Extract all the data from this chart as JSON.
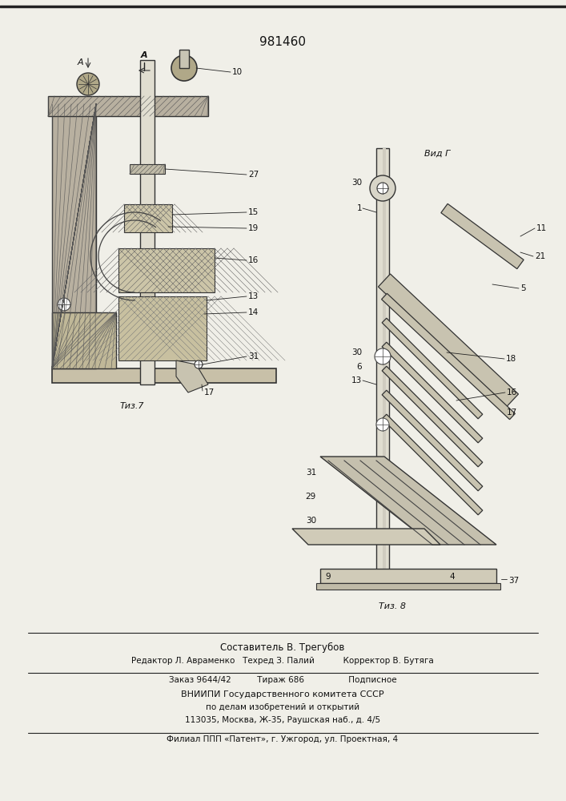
{
  "patent_number": "981460",
  "background_color": "#e8e8e0",
  "paper_color": "#f0efe8",
  "title_text": "981460",
  "fig7_label": "Τиз.7",
  "fig8_label": "Τиз. 8",
  "view_label": "Вид Г",
  "arrow_label": "А",
  "footer_lines": [
    "Составитель В. Трегубов",
    "Редактор Л. Авраменко   Техред З. Палий           Корректор В. Бутяга",
    "Заказ 9644/42          Тираж 686                 Подписное",
    "ВНИИПИ Государственного комитета СССР",
    "по делам изобретений и открытий",
    "113035, Москва, Ж-35, Раушская наб., д. 4/5",
    "Филиал ППП «Патент», г. Ужгород, ул. Проектная, 4"
  ]
}
